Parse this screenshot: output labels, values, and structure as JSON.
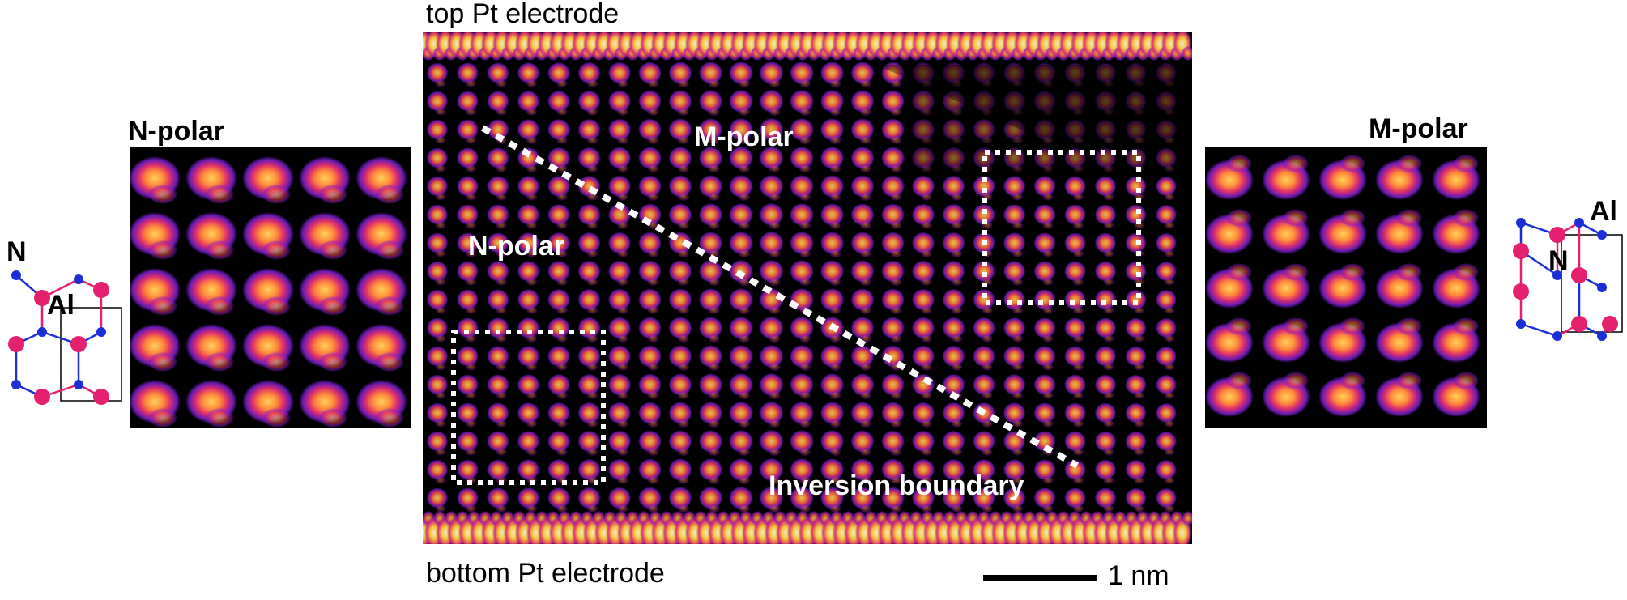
{
  "labels": {
    "top_electrode": "top Pt electrode",
    "bottom_electrode": "bottom Pt electrode",
    "left_panel_title": "N-polar",
    "right_panel_title": "M-polar",
    "region_m_polar": "M-polar",
    "region_n_polar": "N-polar",
    "boundary": "Inversion boundary",
    "scale_bar": "1 nm",
    "left_atom_n": "N",
    "left_atom_al": "Al",
    "right_atom_n": "N",
    "right_atom_al": "Al"
  },
  "colors": {
    "background_dark": "#000000",
    "atom_glow": "#7a1fd0",
    "atom_mid": "#e0306a",
    "atom_core": "#ffd25a",
    "nitrogen_atom": "#1c2fd6",
    "aluminum_atom": "#e5206f",
    "overlay_white": "#ffffff"
  }
}
